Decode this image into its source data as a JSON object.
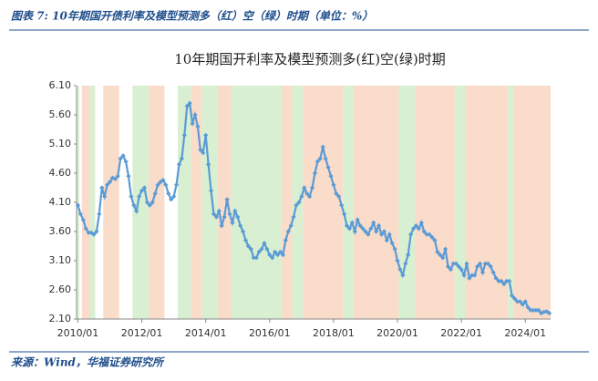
{
  "header": {
    "caption": "图表 7: 10年期国开债利率及模型预测多（红）空（绿）时期（单位：%）"
  },
  "chart_data": {
    "type": "line",
    "title": "10年期国开利率及模型预测多(红)空(绿)时期",
    "x": [
      "2010/01",
      "2010/02",
      "2010/03",
      "2010/04",
      "2010/05",
      "2010/06",
      "2010/07",
      "2010/08",
      "2010/09",
      "2010/10",
      "2010/11",
      "2010/12",
      "2011/01",
      "2011/02",
      "2011/03",
      "2011/04",
      "2011/05",
      "2011/06",
      "2011/07",
      "2011/08",
      "2011/09",
      "2011/10",
      "2011/11",
      "2011/12",
      "2012/01",
      "2012/02",
      "2012/03",
      "2012/04",
      "2012/05",
      "2012/06",
      "2012/07",
      "2012/08",
      "2012/09",
      "2012/10",
      "2012/11",
      "2012/12",
      "2013/01",
      "2013/02",
      "2013/03",
      "2013/04",
      "2013/05",
      "2013/06",
      "2013/07",
      "2013/08",
      "2013/09",
      "2013/10",
      "2013/11",
      "2013/12",
      "2014/01",
      "2014/02",
      "2014/03",
      "2014/04",
      "2014/05",
      "2014/06",
      "2014/07",
      "2014/08",
      "2014/09",
      "2014/10",
      "2014/11",
      "2014/12",
      "2015/01",
      "2015/02",
      "2015/03",
      "2015/04",
      "2015/05",
      "2015/06",
      "2015/07",
      "2015/08",
      "2015/09",
      "2015/10",
      "2015/11",
      "2015/12",
      "2016/01",
      "2016/02",
      "2016/03",
      "2016/04",
      "2016/05",
      "2016/06",
      "2016/07",
      "2016/08",
      "2016/09",
      "2016/10",
      "2016/11",
      "2016/12",
      "2017/01",
      "2017/02",
      "2017/03",
      "2017/04",
      "2017/05",
      "2017/06",
      "2017/07",
      "2017/08",
      "2017/09",
      "2017/10",
      "2017/11",
      "2017/12",
      "2018/01",
      "2018/02",
      "2018/03",
      "2018/04",
      "2018/05",
      "2018/06",
      "2018/07",
      "2018/08",
      "2018/09",
      "2018/10",
      "2018/11",
      "2018/12",
      "2019/01",
      "2019/02",
      "2019/03",
      "2019/04",
      "2019/05",
      "2019/06",
      "2019/07",
      "2019/08",
      "2019/09",
      "2019/10",
      "2019/11",
      "2019/12",
      "2020/01",
      "2020/02",
      "2020/03",
      "2020/04",
      "2020/05",
      "2020/06",
      "2020/07",
      "2020/08",
      "2020/09",
      "2020/10",
      "2020/11",
      "2020/12",
      "2021/01",
      "2021/02",
      "2021/03",
      "2021/04",
      "2021/05",
      "2021/06",
      "2021/07",
      "2021/08",
      "2021/09",
      "2021/10",
      "2021/11",
      "2021/12",
      "2022/01",
      "2022/02",
      "2022/03",
      "2022/04",
      "2022/05",
      "2022/06",
      "2022/07",
      "2022/08",
      "2022/09",
      "2022/10",
      "2022/11",
      "2022/12",
      "2023/01",
      "2023/02",
      "2023/03",
      "2023/04",
      "2023/05",
      "2023/06",
      "2023/07",
      "2023/08",
      "2023/09",
      "2023/10",
      "2023/11",
      "2023/12",
      "2024/01",
      "2024/02",
      "2024/03",
      "2024/04",
      "2024/05",
      "2024/06",
      "2024/07",
      "2024/08",
      "2024/09",
      "2024/10"
    ],
    "series": [
      {
        "color": "#5b9bd5",
        "values": [
          4.05,
          3.9,
          3.8,
          3.65,
          3.58,
          3.58,
          3.55,
          3.6,
          3.9,
          4.35,
          4.2,
          4.4,
          4.45,
          4.52,
          4.5,
          4.55,
          4.85,
          4.9,
          4.8,
          4.55,
          4.2,
          4.05,
          3.95,
          4.2,
          4.3,
          4.35,
          4.1,
          4.05,
          4.1,
          4.25,
          4.4,
          4.45,
          4.48,
          4.4,
          4.25,
          4.15,
          4.2,
          4.4,
          4.75,
          4.85,
          5.25,
          5.75,
          5.8,
          5.45,
          5.6,
          5.4,
          5.0,
          4.95,
          5.25,
          4.75,
          4.3,
          3.9,
          3.85,
          3.95,
          3.7,
          3.85,
          4.15,
          3.9,
          3.75,
          3.95,
          3.85,
          3.7,
          3.6,
          3.45,
          3.35,
          3.3,
          3.15,
          3.15,
          3.25,
          3.3,
          3.4,
          3.3,
          3.2,
          3.15,
          3.25,
          3.2,
          3.25,
          3.2,
          3.45,
          3.6,
          3.7,
          3.85,
          4.05,
          4.1,
          4.2,
          4.35,
          4.25,
          4.2,
          4.35,
          4.6,
          4.8,
          4.85,
          5.05,
          4.85,
          4.7,
          4.55,
          4.4,
          4.25,
          4.2,
          4.05,
          3.9,
          3.7,
          3.65,
          3.75,
          3.6,
          3.8,
          3.7,
          3.65,
          3.6,
          3.55,
          3.65,
          3.75,
          3.6,
          3.7,
          3.55,
          3.6,
          3.45,
          3.55,
          3.4,
          3.3,
          3.1,
          2.95,
          2.85,
          3.05,
          3.2,
          3.55,
          3.65,
          3.7,
          3.65,
          3.75,
          3.6,
          3.55,
          3.55,
          3.5,
          3.45,
          3.25,
          3.2,
          3.15,
          3.3,
          3.0,
          2.95,
          3.05,
          3.05,
          3.0,
          2.95,
          2.85,
          3.05,
          2.8,
          2.85,
          2.85,
          3.0,
          3.05,
          2.9,
          3.05,
          3.05,
          3.0,
          2.9,
          2.8,
          2.75,
          2.75,
          2.7,
          2.75,
          2.75,
          2.5,
          2.45,
          2.4,
          2.4,
          2.35,
          2.4,
          2.3,
          2.25,
          2.25,
          2.25,
          2.25,
          2.2,
          2.22,
          2.23,
          2.2
        ]
      }
    ],
    "periods": [
      {
        "start": "2010/01",
        "end": "2010/01",
        "color": "#d9efd2"
      },
      {
        "start": "2010/03",
        "end": "2010/05",
        "color": "#fadcca"
      },
      {
        "start": "2010/06",
        "end": "2010/07",
        "color": "#d9efd2"
      },
      {
        "start": "2010/11",
        "end": "2011/04",
        "color": "#fadcca"
      },
      {
        "start": "2011/10",
        "end": "2012/03",
        "color": "#d9efd2"
      },
      {
        "start": "2012/04",
        "end": "2012/09",
        "color": "#fadcca"
      },
      {
        "start": "2013/03",
        "end": "2013/07",
        "color": "#d9efd2"
      },
      {
        "start": "2013/08",
        "end": "2013/11",
        "color": "#fadcca"
      },
      {
        "start": "2013/12",
        "end": "2014/05",
        "color": "#d9efd2"
      },
      {
        "start": "2014/06",
        "end": "2014/10",
        "color": "#fadcca"
      },
      {
        "start": "2014/11",
        "end": "2016/05",
        "color": "#d9efd2"
      },
      {
        "start": "2016/06",
        "end": "2016/09",
        "color": "#fadcca"
      },
      {
        "start": "2016/10",
        "end": "2017/01",
        "color": "#d9efd2"
      },
      {
        "start": "2017/02",
        "end": "2018/04",
        "color": "#fadcca"
      },
      {
        "start": "2018/05",
        "end": "2018/08",
        "color": "#d9efd2"
      },
      {
        "start": "2018/09",
        "end": "2020/01",
        "color": "#fadcca"
      },
      {
        "start": "2020/02",
        "end": "2020/07",
        "color": "#d9efd2"
      },
      {
        "start": "2020/08",
        "end": "2021/10",
        "color": "#fadcca"
      },
      {
        "start": "2021/11",
        "end": "2022/02",
        "color": "#d9efd2"
      },
      {
        "start": "2022/03",
        "end": "2023/06",
        "color": "#fadcca"
      },
      {
        "start": "2023/07",
        "end": "2023/08",
        "color": "#d9efd2"
      },
      {
        "start": "2023/09",
        "end": "2024/10",
        "color": "#fadcca"
      }
    ],
    "ylim": [
      2.1,
      6.1
    ],
    "yticks": [
      {
        "value": 2.1,
        "label": "2.10"
      },
      {
        "value": 2.6,
        "label": "2.60"
      },
      {
        "value": 3.1,
        "label": "3.10"
      },
      {
        "value": 3.6,
        "label": "3.60"
      },
      {
        "value": 4.1,
        "label": "4.10"
      },
      {
        "value": 4.6,
        "label": "4.60"
      },
      {
        "value": 5.1,
        "label": "5.10"
      },
      {
        "value": 5.6,
        "label": "5.60"
      },
      {
        "value": 6.1,
        "label": "6.10"
      }
    ],
    "xticks": [
      "2010/01",
      "2012/01",
      "2014/01",
      "2016/01",
      "2018/01",
      "2020/01",
      "2022/01",
      "2024/01"
    ]
  },
  "footer": {
    "source": "来源：Wind，华福证券研究所"
  }
}
